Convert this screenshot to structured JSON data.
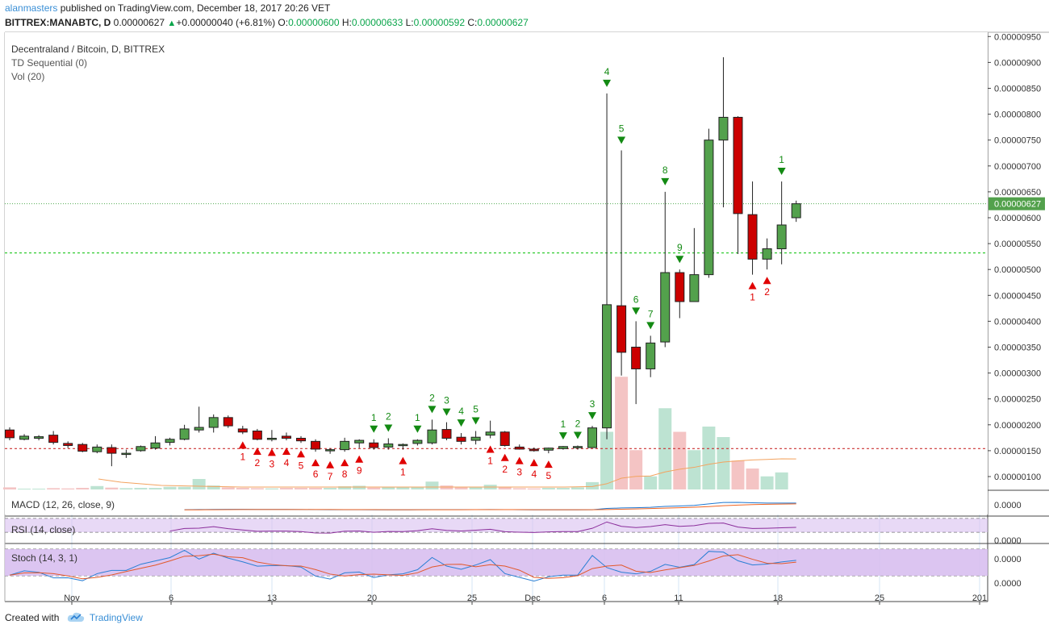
{
  "header": {
    "user": "alanmasters",
    "published_text": "published on TradingView.com, December 18, 2017 20:26 VET",
    "symbol": "BITTREX:MANABTC, D",
    "last": "0.00000627",
    "change_arrow": "▲",
    "change": "+0.00000040 (+6.81%)",
    "o_label": "O:",
    "o": "0.00000600",
    "h_label": "H:",
    "h": "0.00000633",
    "l_label": "L:",
    "l": "0.00000592",
    "c_label": "C:",
    "c": "0.00000627"
  },
  "legend": {
    "title": "Decentraland / Bitcoin, D, BITTREX",
    "td": "TD Sequential (0)",
    "vol": "Vol (20)",
    "macd": "MACD (12, 26, close, 9)",
    "rsi": "RSI (14, close)",
    "stoch": "Stoch (14, 3, 1)"
  },
  "footer": {
    "created": "Created with",
    "brand": "TradingView"
  },
  "colors": {
    "up": "#53a14c",
    "down": "#cc0000",
    "down_dark": "#7b1f3e",
    "up_vol": "#bde3d2",
    "down_vol": "#f4c4c4",
    "grid": "#d6e6f5",
    "td_buy": "#e00000",
    "td_sell": "#138a13",
    "support": "#cc3333",
    "resistance": "#33cc33",
    "price_tag": "#53a14c",
    "vol_ma": "#f3a35f",
    "macd": "#1f78d1",
    "signal": "#f06422",
    "rsi": "#8b2e9b",
    "stoch_k": "#2a7fd4",
    "stoch_d": "#e2582b",
    "band": "#d8bff0"
  },
  "chart_data": {
    "type": "candlestick",
    "title": "Decentraland / Bitcoin, D, BITTREX",
    "y_axis": {
      "min": 7e-07,
      "max": 9.6e-06,
      "ticks": [
        "0.00000100",
        "0.00000150",
        "0.00000200",
        "0.00000250",
        "0.00000300",
        "0.00000350",
        "0.00000400",
        "0.00000450",
        "0.00000500",
        "0.00000550",
        "0.00000600",
        "0.00000650",
        "0.00000700",
        "0.00000750",
        "0.00000800",
        "0.00000850",
        "0.00000900",
        "0.00000950"
      ]
    },
    "x_axis": {
      "labels": [
        "Nov",
        "6",
        "13",
        "20",
        "25",
        "Dec",
        "6",
        "11",
        "18",
        "25",
        "201"
      ]
    },
    "last_price_label": "0.00000627",
    "candles": [
      {
        "o": 1.9,
        "h": 1.95,
        "l": 1.7,
        "c": 1.75
      },
      {
        "o": 1.72,
        "h": 1.82,
        "l": 1.7,
        "c": 1.78
      },
      {
        "o": 1.74,
        "h": 1.8,
        "l": 1.7,
        "c": 1.77
      },
      {
        "o": 1.8,
        "h": 1.88,
        "l": 1.62,
        "c": 1.66
      },
      {
        "o": 1.64,
        "h": 1.68,
        "l": 1.55,
        "c": 1.6
      },
      {
        "o": 1.62,
        "h": 1.65,
        "l": 1.47,
        "c": 1.49
      },
      {
        "o": 1.48,
        "h": 1.62,
        "l": 1.45,
        "c": 1.57
      },
      {
        "o": 1.56,
        "h": 1.62,
        "l": 1.2,
        "c": 1.45
      },
      {
        "o": 1.44,
        "h": 1.52,
        "l": 1.36,
        "c": 1.45
      },
      {
        "o": 1.5,
        "h": 1.6,
        "l": 1.48,
        "c": 1.58
      },
      {
        "o": 1.55,
        "h": 1.78,
        "l": 1.52,
        "c": 1.65
      },
      {
        "o": 1.66,
        "h": 1.75,
        "l": 1.6,
        "c": 1.72
      },
      {
        "o": 1.72,
        "h": 2.0,
        "l": 1.7,
        "c": 1.92
      },
      {
        "o": 1.9,
        "h": 2.35,
        "l": 1.85,
        "c": 1.95
      },
      {
        "o": 1.95,
        "h": 2.2,
        "l": 1.85,
        "c": 2.14
      },
      {
        "o": 2.14,
        "h": 2.18,
        "l": 1.94,
        "c": 1.98
      },
      {
        "o": 1.92,
        "h": 1.98,
        "l": 1.82,
        "c": 1.86
      },
      {
        "o": 1.88,
        "h": 1.92,
        "l": 1.7,
        "c": 1.72
      },
      {
        "o": 1.72,
        "h": 1.9,
        "l": 1.68,
        "c": 1.74
      },
      {
        "o": 1.78,
        "h": 1.85,
        "l": 1.7,
        "c": 1.74
      },
      {
        "o": 1.74,
        "h": 1.78,
        "l": 1.65,
        "c": 1.69
      },
      {
        "o": 1.68,
        "h": 1.72,
        "l": 1.48,
        "c": 1.53
      },
      {
        "o": 1.5,
        "h": 1.55,
        "l": 1.44,
        "c": 1.52
      },
      {
        "o": 1.52,
        "h": 1.75,
        "l": 1.48,
        "c": 1.68
      },
      {
        "o": 1.65,
        "h": 1.72,
        "l": 1.55,
        "c": 1.7
      },
      {
        "o": 1.65,
        "h": 1.72,
        "l": 1.52,
        "c": 1.56
      },
      {
        "o": 1.57,
        "h": 1.74,
        "l": 1.52,
        "c": 1.63
      },
      {
        "o": 1.6,
        "h": 1.64,
        "l": 1.52,
        "c": 1.62
      },
      {
        "o": 1.64,
        "h": 1.72,
        "l": 1.6,
        "c": 1.7
      },
      {
        "o": 1.65,
        "h": 2.1,
        "l": 1.62,
        "c": 1.9
      },
      {
        "o": 1.91,
        "h": 2.05,
        "l": 1.7,
        "c": 1.74
      },
      {
        "o": 1.76,
        "h": 1.84,
        "l": 1.62,
        "c": 1.68
      },
      {
        "o": 1.7,
        "h": 1.88,
        "l": 1.62,
        "c": 1.76
      },
      {
        "o": 1.8,
        "h": 2.08,
        "l": 1.74,
        "c": 1.86
      },
      {
        "o": 1.86,
        "h": 1.88,
        "l": 1.58,
        "c": 1.6
      },
      {
        "o": 1.57,
        "h": 1.62,
        "l": 1.52,
        "c": 1.53
      },
      {
        "o": 1.53,
        "h": 1.56,
        "l": 1.48,
        "c": 1.5
      },
      {
        "o": 1.51,
        "h": 1.56,
        "l": 1.45,
        "c": 1.55
      },
      {
        "o": 1.54,
        "h": 1.59,
        "l": 1.52,
        "c": 1.58
      },
      {
        "o": 1.56,
        "h": 1.6,
        "l": 1.52,
        "c": 1.58
      },
      {
        "o": 1.56,
        "h": 1.98,
        "l": 1.56,
        "c": 1.94
      },
      {
        "o": 1.94,
        "h": 8.4,
        "l": 1.72,
        "c": 4.32
      },
      {
        "o": 4.3,
        "h": 7.3,
        "l": 2.95,
        "c": 3.4
      },
      {
        "o": 3.5,
        "h": 4.0,
        "l": 2.4,
        "c": 3.08
      },
      {
        "o": 3.08,
        "h": 3.72,
        "l": 2.92,
        "c": 3.58
      },
      {
        "o": 3.6,
        "h": 6.5,
        "l": 3.5,
        "c": 4.94
      },
      {
        "o": 4.94,
        "h": 5.0,
        "l": 4.06,
        "c": 4.38
      },
      {
        "o": 4.38,
        "h": 5.8,
        "l": 4.38,
        "c": 4.9
      },
      {
        "o": 4.9,
        "h": 7.72,
        "l": 4.84,
        "c": 7.5
      },
      {
        "o": 7.5,
        "h": 9.1,
        "l": 6.2,
        "c": 7.94
      },
      {
        "o": 7.94,
        "h": 7.96,
        "l": 5.3,
        "c": 6.08
      },
      {
        "o": 6.06,
        "h": 6.7,
        "l": 4.9,
        "c": 5.2
      },
      {
        "o": 5.2,
        "h": 5.6,
        "l": 5.0,
        "c": 5.4
      },
      {
        "o": 5.4,
        "h": 6.7,
        "l": 5.1,
        "c": 5.86
      },
      {
        "o": 6.0,
        "h": 6.33,
        "l": 5.92,
        "c": 6.27
      }
    ],
    "volume": [
      0.8,
      0.3,
      0.3,
      0.5,
      0.4,
      0.6,
      1.3,
      0.7,
      0.5,
      0.6,
      0.6,
      1.0,
      1.0,
      4.0,
      1.5,
      0.8,
      0.6,
      0.5,
      0.4,
      0.6,
      0.6,
      0.6,
      0.6,
      1.2,
      1.4,
      0.7,
      0.8,
      1.0,
      0.9,
      3.0,
      1.5,
      1.0,
      1.0,
      1.8,
      1.0,
      0.5,
      0.4,
      0.6,
      0.6,
      0.8,
      2.8,
      22.0,
      43.0,
      15.0,
      5.0,
      31.0,
      22.0,
      15.0,
      24.0,
      20.0,
      11.0,
      8.0,
      5.0,
      6.5,
      0.0
    ],
    "td_sequential": {
      "sell_setup": [
        {
          "i": 25,
          "n": "1"
        },
        {
          "i": 26,
          "n": "2"
        },
        {
          "i": 28,
          "n": "1"
        },
        {
          "i": 29,
          "n": "2"
        },
        {
          "i": 30,
          "n": "3"
        },
        {
          "i": 31,
          "n": "4"
        },
        {
          "i": 32,
          "n": "5"
        },
        {
          "i": 38,
          "n": "1"
        },
        {
          "i": 39,
          "n": "2"
        },
        {
          "i": 40,
          "n": "3"
        },
        {
          "i": 41,
          "n": "4"
        },
        {
          "i": 42,
          "n": "5"
        },
        {
          "i": 43,
          "n": "6"
        },
        {
          "i": 44,
          "n": "7"
        },
        {
          "i": 45,
          "n": "8"
        },
        {
          "i": 46,
          "n": "9"
        },
        {
          "i": 53,
          "n": "1"
        }
      ],
      "buy_setup": [
        {
          "i": 16,
          "n": "1"
        },
        {
          "i": 17,
          "n": "2"
        },
        {
          "i": 18,
          "n": "3"
        },
        {
          "i": 19,
          "n": "4"
        },
        {
          "i": 20,
          "n": "5"
        },
        {
          "i": 21,
          "n": "6"
        },
        {
          "i": 22,
          "n": "7"
        },
        {
          "i": 23,
          "n": "8"
        },
        {
          "i": 24,
          "n": "9"
        },
        {
          "i": 27,
          "n": "1"
        },
        {
          "i": 33,
          "n": "1"
        },
        {
          "i": 34,
          "n": "2"
        },
        {
          "i": 35,
          "n": "3"
        },
        {
          "i": 36,
          "n": "4"
        },
        {
          "i": 37,
          "n": "5"
        },
        {
          "i": 51,
          "n": "1"
        },
        {
          "i": 52,
          "n": "2"
        }
      ]
    },
    "support_level": 1.54,
    "resistance_level": 5.32,
    "last_price": 6.27,
    "y_unit": "x0.000001 BTC",
    "indicator_axis_labels": [
      "0.0000",
      "0.0000",
      "0.0000",
      "0.0000"
    ]
  }
}
